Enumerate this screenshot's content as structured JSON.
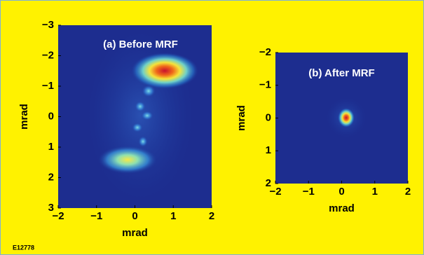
{
  "chart_data": [
    {
      "type": "image",
      "title": "(a) Before MRF",
      "xlabel": "mrad",
      "ylabel": "mrad",
      "xlim": [
        -2,
        2
      ],
      "ylim": [
        -3,
        3
      ],
      "invert_y": true,
      "xticks": [
        {
          "value": -2,
          "label": "−2"
        },
        {
          "value": -1,
          "label": "−1"
        },
        0,
        1,
        2
      ],
      "yticks": [
        {
          "value": -3,
          "label": "−3"
        },
        {
          "value": -2,
          "label": "−2"
        },
        {
          "value": -1,
          "label": "−1"
        },
        0,
        1,
        2,
        3
      ]
    },
    {
      "type": "image",
      "title": "(b) After MRF",
      "xlabel": "mrad",
      "ylabel": "mrad",
      "xlim": [
        -2,
        2
      ],
      "ylim": [
        -2,
        2
      ],
      "invert_y": true,
      "xticks": [
        {
          "value": -2,
          "label": "−2"
        },
        {
          "value": -1,
          "label": "−1"
        },
        0,
        1,
        2
      ],
      "yticks": [
        {
          "value": -2,
          "label": "−2"
        },
        {
          "value": -1,
          "label": "−1"
        },
        0,
        1,
        2
      ]
    }
  ],
  "figure_id": "E12778"
}
